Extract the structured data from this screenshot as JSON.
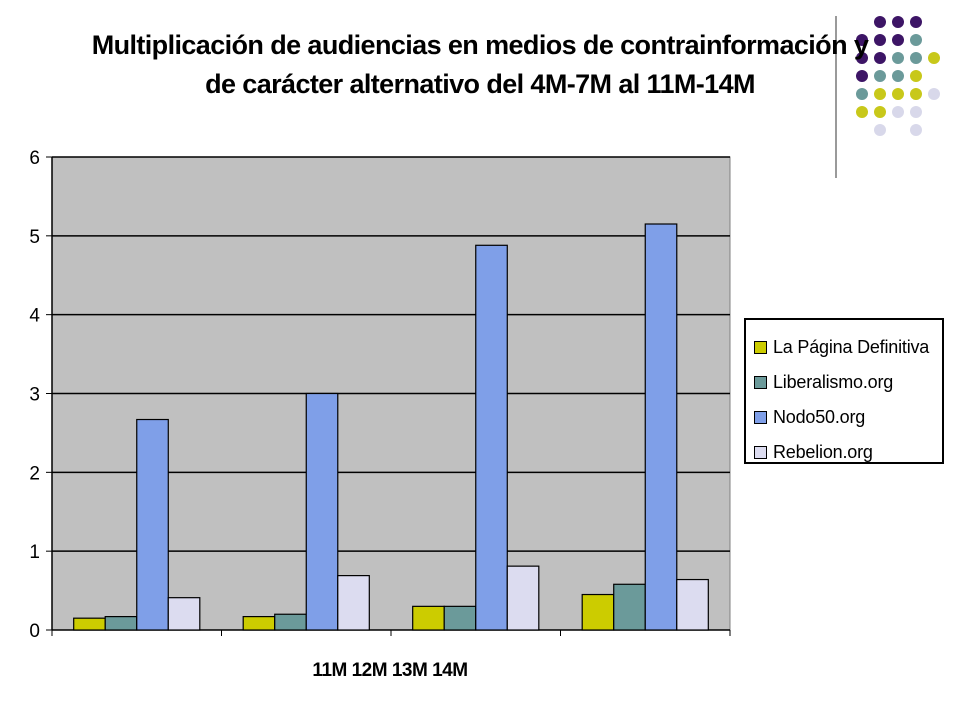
{
  "chart_data": {
    "type": "bar",
    "title": "Multiplicación de audiencias en medios de contrainformación y de carácter alternativo del 4M-7M al 11M-14M",
    "title_lines": [
      "Multiplicación de audiencias en medios de contrainformación y",
      "de carácter alternativo del 4M-7M al 11M-14M"
    ],
    "xlabel": "11M 12M 13M 14M",
    "ylabel": "",
    "categories": [
      "11M",
      "12M",
      "13M",
      "14M"
    ],
    "ylim": [
      0,
      6
    ],
    "yticks": [
      "0",
      "1",
      "2",
      "3",
      "4",
      "5",
      "6"
    ],
    "grid": true,
    "legend_position": "right",
    "series": [
      {
        "name": "La Página Definitiva",
        "color": "#cccc00",
        "values": [
          0.15,
          0.17,
          0.3,
          0.45
        ]
      },
      {
        "name": "Liberalismo.org",
        "color": "#6b9a9a",
        "values": [
          0.17,
          0.2,
          0.3,
          0.58
        ]
      },
      {
        "name": "Nodo50.org",
        "color": "#7f9fe8",
        "values": [
          2.67,
          3.0,
          4.88,
          5.15
        ]
      },
      {
        "name": "Rebelion.org",
        "color": "#dcdcf0",
        "values": [
          0.41,
          0.69,
          0.81,
          0.64
        ]
      }
    ],
    "plot_background": "#c0c0c0"
  },
  "decoration": {
    "dot_colors": [
      "#3d1566",
      "#6b9a9a",
      "#c8c81a",
      "#d8d8ea"
    ]
  }
}
